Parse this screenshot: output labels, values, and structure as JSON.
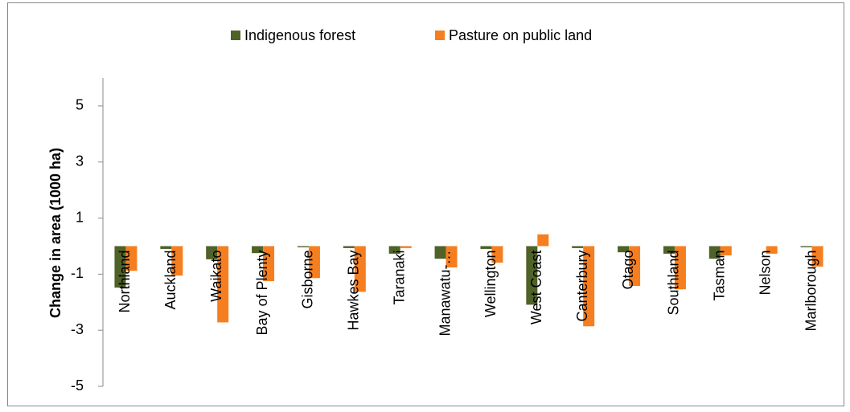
{
  "chart_data": {
    "type": "bar",
    "y_label": "Change in area (1000 ha)",
    "categories": [
      "Northland",
      "Auckland",
      "Waikato",
      "Bay of Plenty",
      "Gisborne",
      "Hawkes Bay",
      "Taranaki",
      "Manawatu-…",
      "Wellington",
      "West Coast",
      "Canterbury",
      "Otago",
      "Southland",
      "Tasman",
      "Nelson",
      "Marlborough"
    ],
    "series": [
      {
        "name": "Indigenous forest",
        "color": "#4f6228",
        "values": [
          -1.48,
          -0.1,
          -0.47,
          -0.25,
          -0.04,
          -0.07,
          -0.27,
          -0.45,
          -0.1,
          -2.09,
          -0.07,
          -0.22,
          -0.27,
          -0.45,
          0,
          -0.04
        ]
      },
      {
        "name": "Pasture on public land",
        "color": "#f57f20",
        "values": [
          -0.88,
          -1.05,
          -2.72,
          -1.25,
          -1.14,
          -1.63,
          -0.07,
          -0.76,
          -0.59,
          0.42,
          -2.86,
          -1.42,
          -1.54,
          -0.33,
          -0.27,
          -0.73
        ]
      }
    ],
    "ylim": [
      -5,
      6
    ],
    "yticks": [
      -5,
      -3,
      -1,
      1,
      3,
      5
    ],
    "grid": false,
    "legend": "top"
  }
}
